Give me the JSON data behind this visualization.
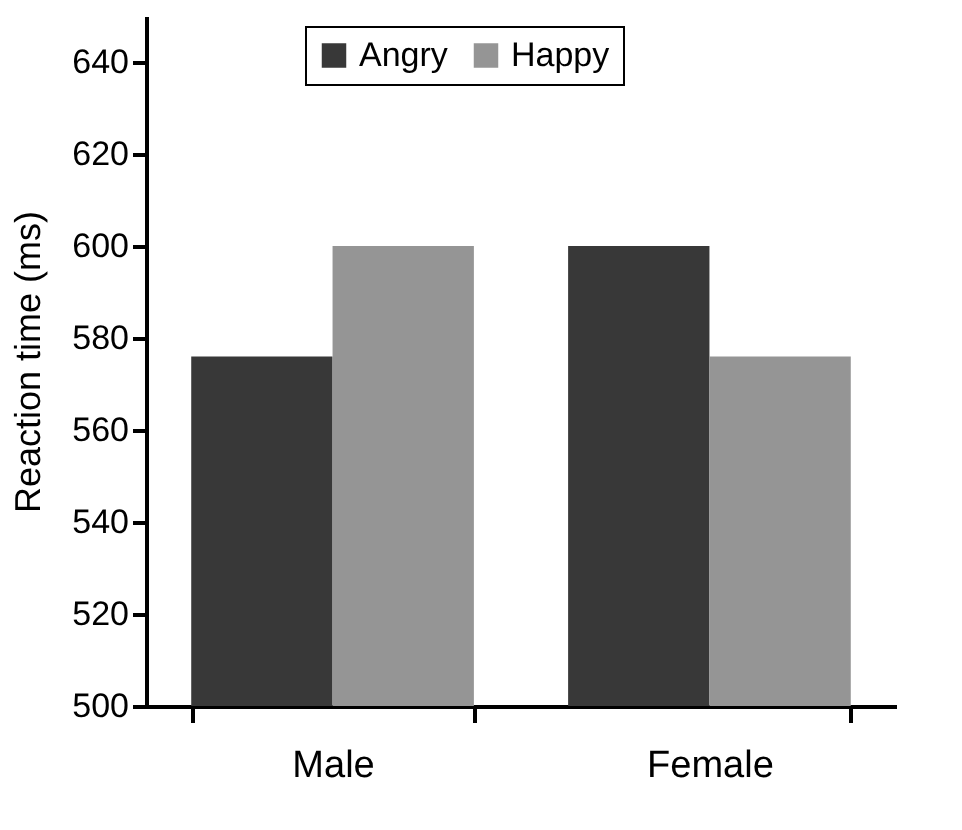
{
  "chart_data": {
    "type": "bar",
    "ylabel": "Reaction time (ms)",
    "categories": [
      "Male",
      "Female"
    ],
    "series": [
      {
        "name": "Angry",
        "color": "#383838",
        "values": [
          576,
          600
        ]
      },
      {
        "name": "Happy",
        "color": "#959595",
        "values": [
          600,
          576
        ]
      }
    ],
    "ylim": [
      500,
      650
    ],
    "yticks": [
      500,
      520,
      540,
      560,
      580,
      600,
      620,
      640
    ],
    "grid": false,
    "legend": "top"
  }
}
